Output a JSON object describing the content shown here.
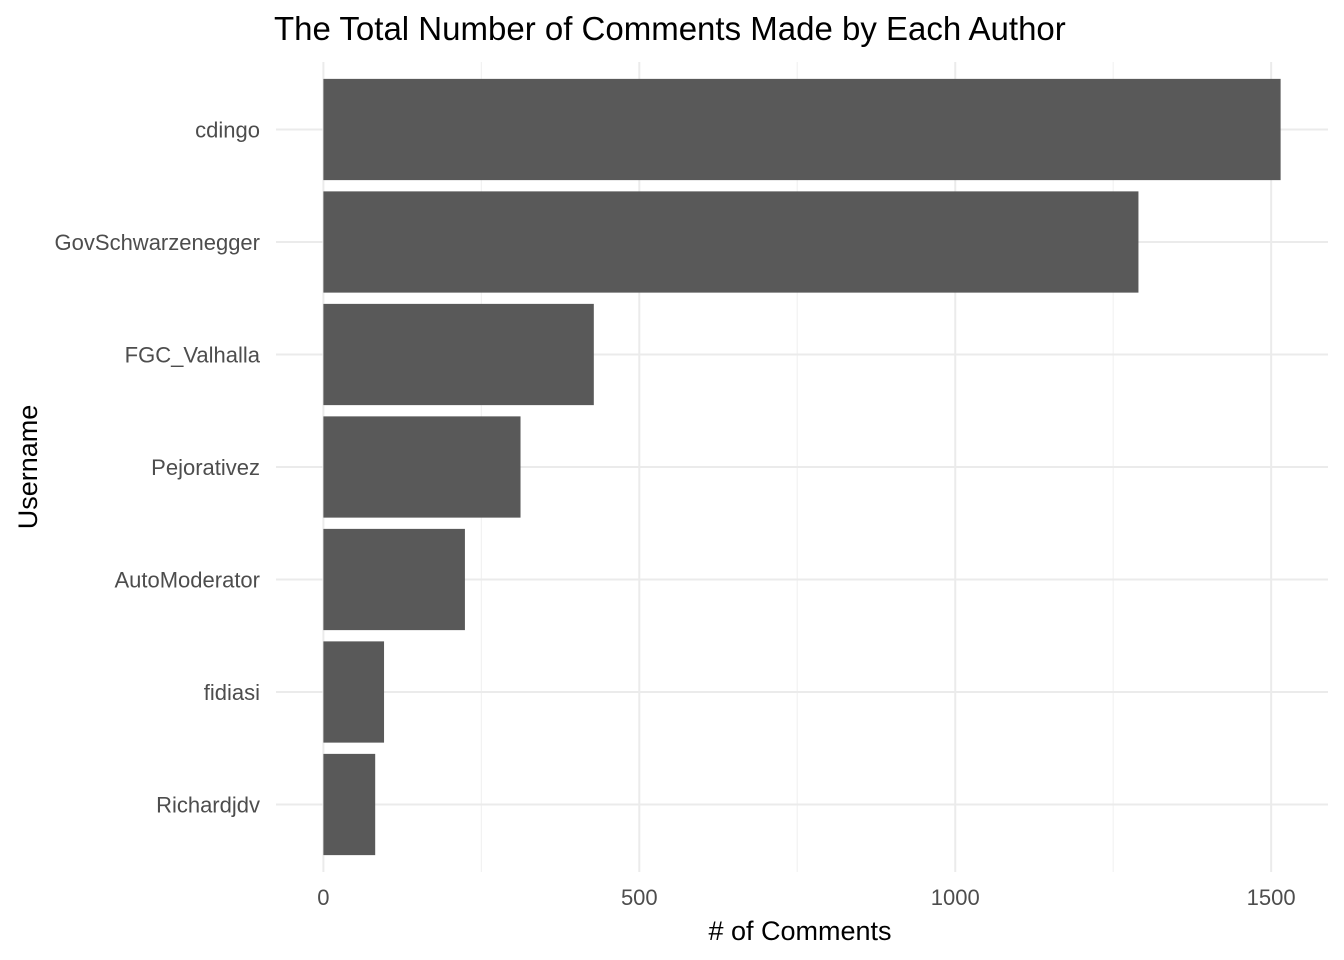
{
  "chart_data": {
    "type": "bar",
    "orientation": "horizontal",
    "title": "The Total Number of Comments Made by Each Author",
    "xlabel": "# of Comments",
    "ylabel": "Username",
    "categories": [
      "cdingo",
      "GovSchwarzenegger",
      "FGC_Valhalla",
      "Pejorativez",
      "AutoModerator",
      "fidiasi",
      "Richardjdv"
    ],
    "values": [
      1515,
      1290,
      428,
      312,
      224,
      96,
      82
    ],
    "xlim": [
      -75,
      1590
    ],
    "x_ticks": [
      0,
      500,
      1000,
      1500
    ],
    "x_tick_labels": [
      "0",
      "500",
      "1000",
      "1500"
    ],
    "grid": true,
    "bar_color": "#595959"
  }
}
